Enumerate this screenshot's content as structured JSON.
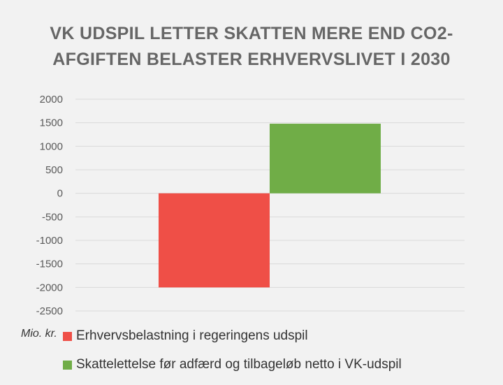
{
  "title_line1": "VK UDSPIL LETTER SKATTEN MERE END CO2-",
  "title_line2": "AFGIFTEN BELASTER ERHVERVSLIVET I 2030",
  "unit_label": "Mio. kr.",
  "chart_data": {
    "type": "bar",
    "title": "VK UDSPIL LETTER SKATTEN MERE END CO2-AFGIFTEN BELASTER ERHVERVSLIVET I 2030",
    "ylabel": "Mio. kr.",
    "xlabel": "",
    "ylim": [
      -2500,
      2000
    ],
    "yticks": [
      2000,
      1500,
      1000,
      500,
      0,
      -500,
      -1000,
      -1500,
      -2000,
      -2500
    ],
    "grid": true,
    "legend_position": "bottom",
    "series": [
      {
        "name": "Erhvervsbelastning i regeringens udspil",
        "values": [
          -2000
        ],
        "color": "#ef4f47"
      },
      {
        "name": "Skattelettelse før adfærd og tilbageløb netto i VK-udspil",
        "values": [
          1480
        ],
        "color": "#70ad47"
      }
    ]
  }
}
